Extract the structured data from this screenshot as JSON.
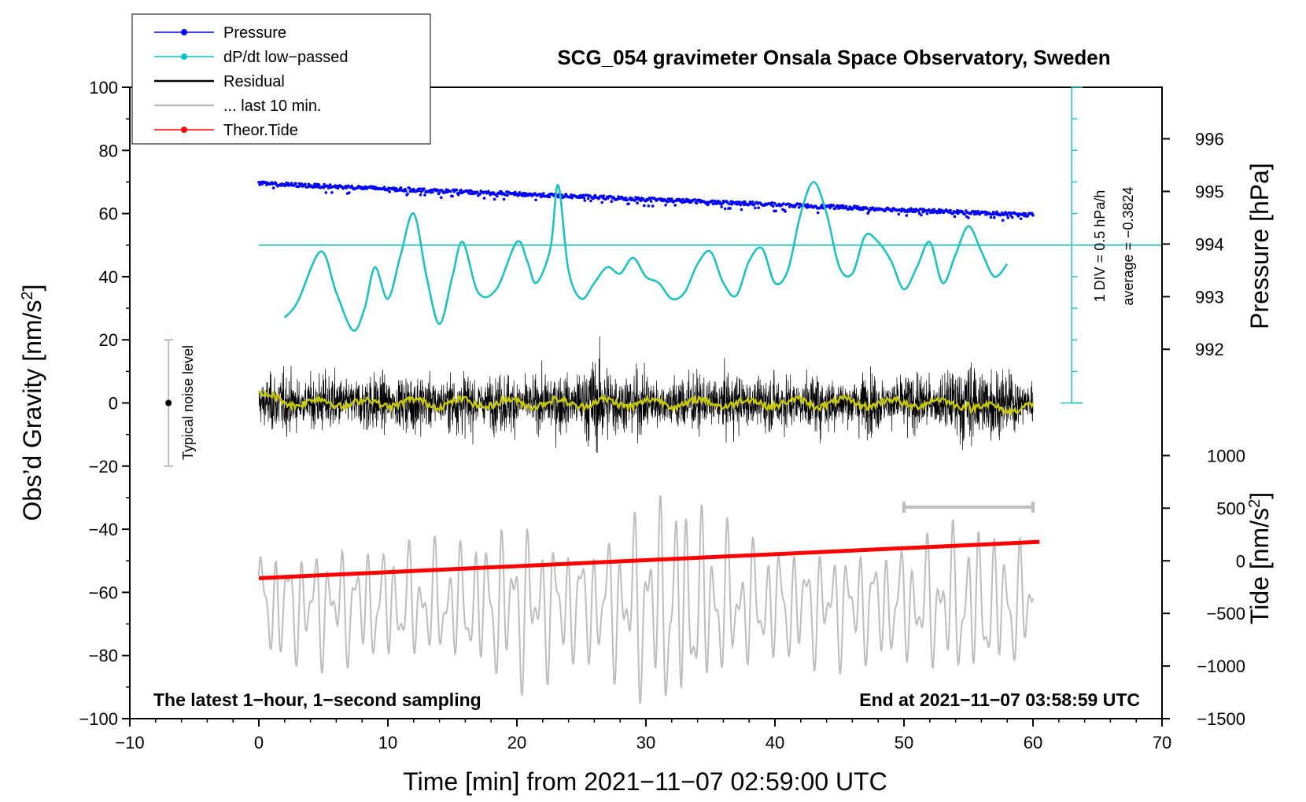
{
  "chart_data": {
    "type": "line",
    "title": "SCG_054 gravimeter Onsala Space Observatory, Sweden",
    "xlabel": "Time [min] from 2021−11−07 02:59:00 UTC",
    "ylabel_main": "Obs’d Gravity [nm/s",
    "ylabel_sup": "2",
    "ylabel_close": "]",
    "ylabel_pressure": "Pressure [hPa]",
    "ylabel_tide": "Tide [nm/s",
    "ylabel_tide_sup": "2",
    "ylabel_tide_close": "]",
    "xlim": [
      -10,
      70
    ],
    "ylim": [
      -100,
      100
    ],
    "x_ticks": [
      {
        "v": -10,
        "label": "−10"
      },
      {
        "v": 0,
        "label": "0"
      },
      {
        "v": 10,
        "label": "10"
      },
      {
        "v": 20,
        "label": "20"
      },
      {
        "v": 30,
        "label": "30"
      },
      {
        "v": 40,
        "label": "40"
      },
      {
        "v": 50,
        "label": "50"
      },
      {
        "v": 60,
        "label": "60"
      },
      {
        "v": 70,
        "label": "70"
      }
    ],
    "y_ticks": [
      {
        "v": 100,
        "label": "100"
      },
      {
        "v": 80,
        "label": "80"
      },
      {
        "v": 60,
        "label": "60"
      },
      {
        "v": 40,
        "label": "40"
      },
      {
        "v": 20,
        "label": "20"
      },
      {
        "v": 0,
        "label": "0"
      },
      {
        "v": -20,
        "label": "−20"
      },
      {
        "v": -40,
        "label": "−40"
      },
      {
        "v": -60,
        "label": "−60"
      },
      {
        "v": -80,
        "label": "−80"
      },
      {
        "v": -100,
        "label": "−100"
      }
    ],
    "pressure_axis": {
      "ticks": [
        {
          "v": 996,
          "label": "996"
        },
        {
          "v": 995,
          "label": "995"
        },
        {
          "v": 994,
          "label": "994"
        },
        {
          "v": 993,
          "label": "993"
        },
        {
          "v": 992,
          "label": "992"
        }
      ],
      "range_hpa": [
        991,
        997
      ]
    },
    "tide_axis": {
      "ticks": [
        {
          "v": 1000,
          "label": "1000"
        },
        {
          "v": 500,
          "label": "500"
        },
        {
          "v": 0,
          "label": "0"
        },
        {
          "v": -500,
          "label": "−500"
        },
        {
          "v": -1000,
          "label": "−1000"
        },
        {
          "v": -1500,
          "label": "−1500"
        }
      ],
      "range": [
        -1500,
        1000
      ]
    },
    "legend": [
      {
        "name": "Pressure",
        "color": "#0000ff",
        "marker": true
      },
      {
        "name": "dP/dt low−passed",
        "color": "#00c8c8",
        "marker": true
      },
      {
        "name": "Residual",
        "color": "#000000",
        "marker": false
      },
      {
        "name": "... last 10 min.",
        "color": "#bdbdbd",
        "marker": false
      },
      {
        "name": "Theor.Tide",
        "color": "#ff0000",
        "marker": true
      }
    ],
    "series": [
      {
        "name": "Pressure",
        "unit": "hPa",
        "start": [
          0,
          995.15
        ],
        "end": [
          60,
          994.55
        ]
      },
      {
        "name": "dP/dt low-passed",
        "unit": "gravity-axis position",
        "x": [
          2,
          3,
          4.8,
          6,
          7.3,
          8.2,
          9,
          10,
          11,
          12,
          13,
          14,
          15,
          15.8,
          17,
          18.4,
          20,
          20.8,
          21.5,
          22.6,
          23.2,
          24,
          25,
          26,
          27,
          28,
          29,
          30,
          31,
          32,
          33,
          34,
          35,
          36,
          37,
          38,
          39,
          40,
          41,
          42,
          43,
          44,
          45,
          46,
          47,
          48,
          49,
          50,
          51,
          52,
          53,
          54,
          55,
          56,
          57,
          58
        ],
        "y": [
          27,
          32,
          48,
          35,
          23,
          30,
          43,
          33,
          47,
          60,
          40,
          25,
          40,
          51,
          35,
          36,
          51,
          45,
          38,
          49,
          69,
          42,
          33,
          38,
          43,
          41,
          46,
          40,
          38,
          33,
          35,
          44,
          48,
          38,
          34,
          45,
          49,
          38,
          42,
          60,
          70,
          60,
          43,
          41,
          53,
          51,
          45,
          36,
          43,
          51,
          38,
          47,
          56,
          48,
          40,
          44
        ]
      },
      {
        "name": "Residual",
        "unit": "nm/s2",
        "x_range": [
          0,
          60
        ],
        "typical_amplitude": 20
      },
      {
        "name": "Residual running mean",
        "unit": "nm/s2",
        "x_range": [
          0,
          60
        ],
        "value": 0
      },
      {
        "name": "Theor.Tide",
        "unit": "nm/s2",
        "start": [
          0,
          -55.5
        ],
        "end": [
          60.5,
          -44
        ]
      },
      {
        "name": "... last 10 min.",
        "unit": "gravity-axis position",
        "x_range": [
          0,
          60
        ],
        "center": -64,
        "typical_amplitude": 20
      },
      {
        "name": "10-min window bar",
        "x_range": [
          50,
          60
        ],
        "y": -33
      }
    ],
    "noise_bar": {
      "x": -7,
      "y_low": -20,
      "y_high": 20,
      "label": "Typical noise level"
    },
    "dpdt_reference": {
      "y": 50,
      "div_label": "1 DIV = 0.5 hPa/h",
      "average_label": "average = −0.3824",
      "scale_x": 63
    }
  },
  "annotations": {
    "bottom_left": "The latest 1−hour, 1−second sampling",
    "bottom_right": "End at 2021−11−07 03:58:59 UTC"
  }
}
